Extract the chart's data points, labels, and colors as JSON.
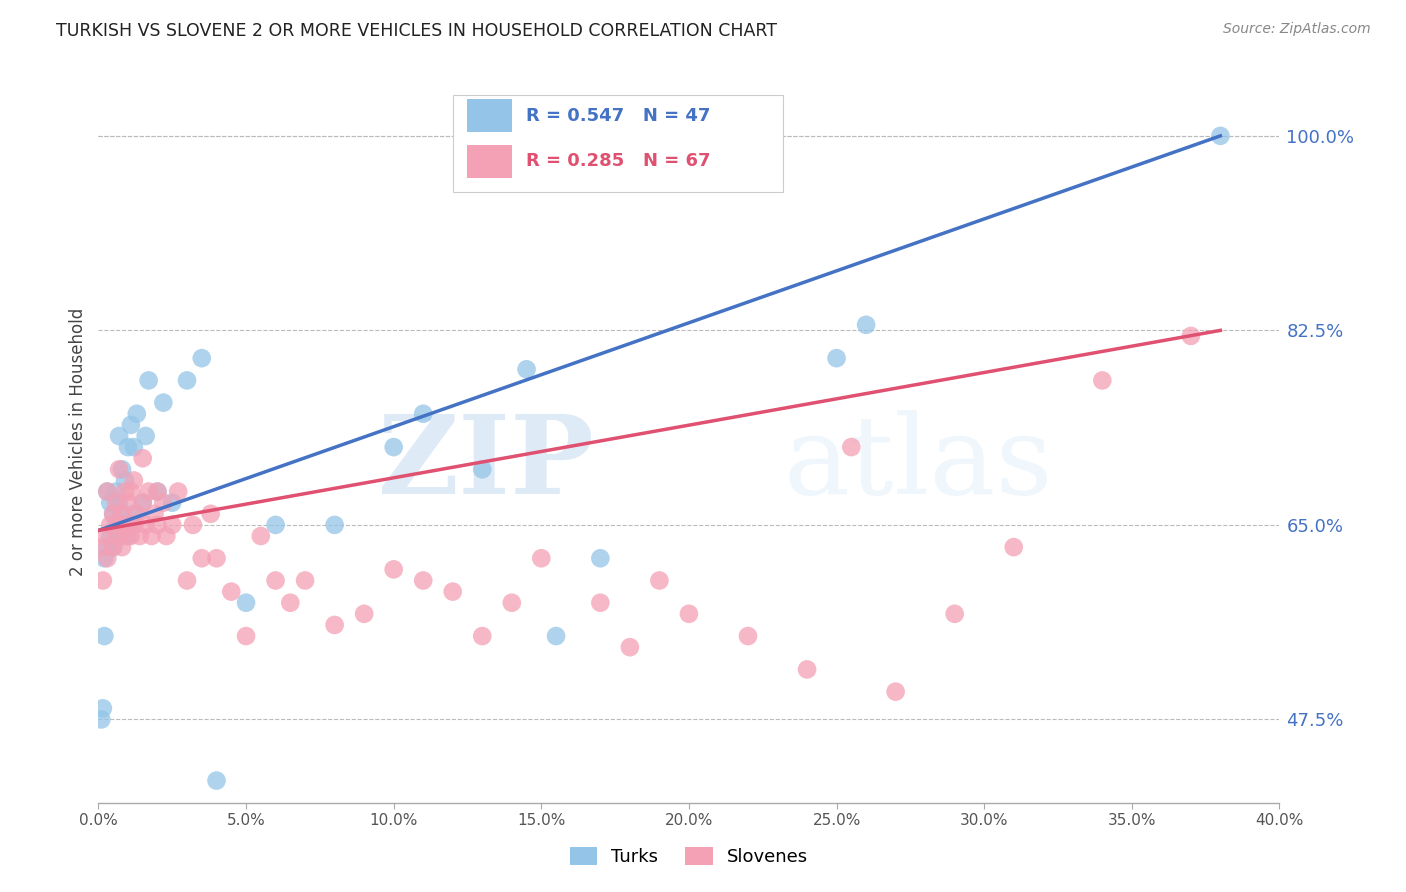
{
  "title": "TURKISH VS SLOVENE 2 OR MORE VEHICLES IN HOUSEHOLD CORRELATION CHART",
  "source": "Source: ZipAtlas.com",
  "ylabel": "2 or more Vehicles in Household",
  "xlim": [
    0.0,
    40.0
  ],
  "ylim": [
    40.0,
    105.0
  ],
  "xticks": [
    0.0,
    5.0,
    10.0,
    15.0,
    20.0,
    25.0,
    30.0,
    35.0,
    40.0
  ],
  "yticks_right": [
    100.0,
    82.5,
    65.0,
    47.5
  ],
  "turks_color": "#94C5E8",
  "slovenes_color": "#F4A0B5",
  "turks_line_color": "#4472C4",
  "slovenes_line_color": "#E05070",
  "turks_R": 0.547,
  "turks_N": 47,
  "slovenes_R": 0.285,
  "slovenes_N": 67,
  "legend_label_turks": "Turks",
  "legend_label_slovenes": "Slovenes",
  "watermark_zip": "ZIP",
  "watermark_atlas": "atlas",
  "blue_line_x": [
    0.0,
    38.0
  ],
  "blue_line_y": [
    64.5,
    100.0
  ],
  "pink_line_x": [
    0.0,
    38.0
  ],
  "pink_line_y": [
    64.5,
    82.5
  ],
  "turks_x": [
    0.1,
    0.15,
    0.2,
    0.2,
    0.3,
    0.3,
    0.4,
    0.4,
    0.5,
    0.5,
    0.6,
    0.6,
    0.7,
    0.7,
    0.7,
    0.8,
    0.8,
    0.9,
    0.9,
    1.0,
    1.0,
    1.1,
    1.1,
    1.2,
    1.2,
    1.3,
    1.5,
    1.6,
    1.7,
    2.0,
    2.2,
    2.5,
    3.0,
    3.5,
    4.0,
    5.0,
    6.0,
    8.0,
    10.0,
    11.0,
    13.0,
    14.5,
    15.5,
    17.0,
    25.0,
    26.0,
    38.0
  ],
  "turks_y": [
    47.5,
    48.5,
    55.0,
    62.0,
    63.0,
    68.0,
    64.0,
    67.0,
    63.0,
    66.0,
    65.0,
    68.0,
    64.0,
    67.0,
    73.0,
    66.0,
    70.0,
    65.0,
    69.0,
    64.0,
    72.0,
    65.0,
    74.0,
    66.0,
    72.0,
    75.0,
    67.0,
    73.0,
    78.0,
    68.0,
    76.0,
    67.0,
    78.0,
    80.0,
    42.0,
    58.0,
    65.0,
    65.0,
    72.0,
    75.0,
    70.0,
    79.0,
    55.0,
    62.0,
    80.0,
    83.0,
    100.0
  ],
  "slovenes_x": [
    0.1,
    0.15,
    0.2,
    0.3,
    0.3,
    0.4,
    0.5,
    0.5,
    0.6,
    0.6,
    0.7,
    0.7,
    0.8,
    0.8,
    0.9,
    0.9,
    1.0,
    1.0,
    1.1,
    1.1,
    1.2,
    1.2,
    1.3,
    1.4,
    1.5,
    1.5,
    1.6,
    1.7,
    1.8,
    1.9,
    2.0,
    2.0,
    2.2,
    2.3,
    2.5,
    2.7,
    3.0,
    3.2,
    3.5,
    3.8,
    4.0,
    4.5,
    5.0,
    5.5,
    6.0,
    6.5,
    7.0,
    8.0,
    9.0,
    10.0,
    11.0,
    12.0,
    13.0,
    14.0,
    15.0,
    17.0,
    18.0,
    19.0,
    20.0,
    22.0,
    24.0,
    25.5,
    27.0,
    29.0,
    31.0,
    34.0,
    37.0
  ],
  "slovenes_y": [
    63.0,
    60.0,
    64.0,
    62.0,
    68.0,
    65.0,
    63.0,
    66.0,
    64.0,
    67.0,
    65.0,
    70.0,
    63.0,
    66.0,
    64.0,
    68.0,
    65.0,
    67.0,
    64.0,
    68.0,
    65.0,
    69.0,
    66.0,
    64.0,
    67.0,
    71.0,
    65.0,
    68.0,
    64.0,
    66.0,
    65.0,
    68.0,
    67.0,
    64.0,
    65.0,
    68.0,
    60.0,
    65.0,
    62.0,
    66.0,
    62.0,
    59.0,
    55.0,
    64.0,
    60.0,
    58.0,
    60.0,
    56.0,
    57.0,
    61.0,
    60.0,
    59.0,
    55.0,
    58.0,
    62.0,
    58.0,
    54.0,
    60.0,
    57.0,
    55.0,
    52.0,
    72.0,
    50.0,
    57.0,
    63.0,
    78.0,
    82.0
  ]
}
